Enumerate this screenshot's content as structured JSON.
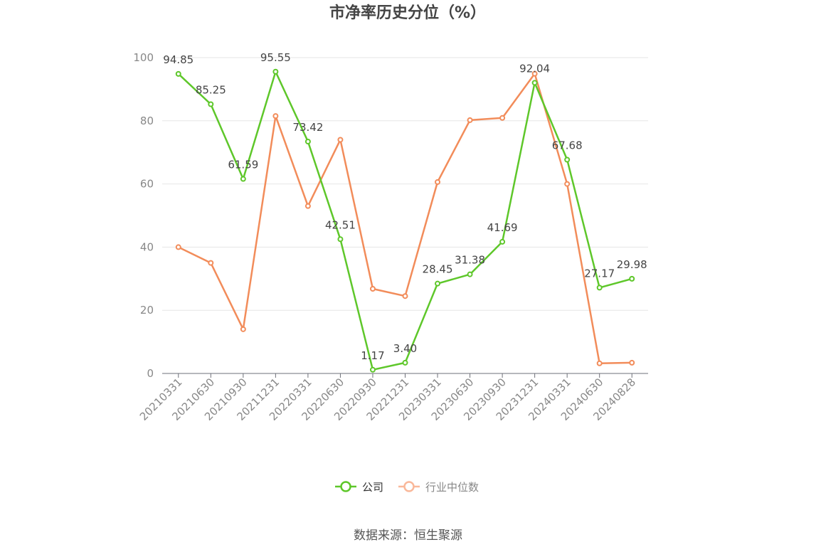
{
  "chart_data": {
    "type": "line",
    "title": "市净率历史分位（%）",
    "categories": [
      "20210331",
      "20210630",
      "20210930",
      "20211231",
      "20220331",
      "20220630",
      "20220930",
      "20221231",
      "20230331",
      "20230630",
      "20230930",
      "20231231",
      "20240331",
      "20240630",
      "20240828"
    ],
    "ylim": [
      0,
      100
    ],
    "yticks": [
      0,
      20,
      40,
      60,
      80,
      100
    ],
    "grid": true,
    "legend_position": "bottom-center",
    "series": [
      {
        "name": "公司",
        "color": "#5ec72a",
        "values": [
          94.85,
          85.25,
          61.59,
          95.55,
          73.42,
          42.51,
          1.17,
          3.4,
          28.45,
          31.38,
          41.69,
          92.04,
          67.68,
          27.17,
          29.98
        ],
        "labels": [
          "94.85",
          "85.25",
          "61.59",
          "95.55",
          "73.42",
          "42.51",
          "1.17",
          "3.40",
          "28.45",
          "31.38",
          "41.69",
          "92.04",
          "67.68",
          "27.17",
          "29.98"
        ]
      },
      {
        "name": "行业中位数",
        "color": "#f28c5a",
        "values": [
          40.0,
          35.0,
          14.0,
          81.5,
          53.0,
          74.0,
          26.8,
          24.5,
          60.6,
          80.2,
          80.9,
          94.9,
          60.0,
          3.2,
          3.4
        ]
      }
    ]
  },
  "source_text": "数据来源：恒生聚源"
}
